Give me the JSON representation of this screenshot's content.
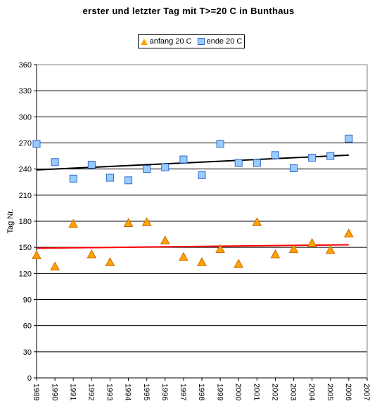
{
  "chart_data": {
    "type": "scatter",
    "title": "erster und letzter Tag mit T>=20 C in Bunthaus",
    "ylabel": "Tag Nr.",
    "xlabel": "",
    "ylim": [
      0,
      360
    ],
    "yticks": [
      0,
      30,
      60,
      90,
      120,
      150,
      180,
      210,
      240,
      270,
      300,
      330,
      360
    ],
    "xlim": [
      1989,
      2007
    ],
    "xticks": [
      1989,
      1990,
      1991,
      1992,
      1993,
      1994,
      1995,
      1996,
      1997,
      1998,
      1999,
      2000,
      2001,
      2002,
      2003,
      2004,
      2005,
      2006,
      2007
    ],
    "grid": "horizontal",
    "legend_position": "top",
    "series": [
      {
        "name": "anfang 20 C",
        "marker": "triangle",
        "color": "#FFA500",
        "edge_color": "#CC6600",
        "x": [
          1989,
          1990,
          1991,
          1992,
          1993,
          1994,
          1995,
          1996,
          1997,
          1998,
          1999,
          2000,
          2001,
          2002,
          2003,
          2004,
          2005,
          2006
        ],
        "values": [
          141,
          128,
          177,
          142,
          133,
          178,
          179,
          158,
          139,
          133,
          148,
          131,
          179,
          142,
          148,
          155,
          147,
          166
        ],
        "trend": {
          "color": "#FF0000",
          "start": [
            1989,
            149
          ],
          "end": [
            2006,
            153
          ]
        }
      },
      {
        "name": "ende 20 C",
        "marker": "square",
        "color": "#99CCFF",
        "edge_color": "#3366CC",
        "x": [
          1989,
          1990,
          1991,
          1992,
          1993,
          1994,
          1995,
          1996,
          1997,
          1998,
          1999,
          2000,
          2001,
          2002,
          2003,
          2004,
          2005,
          2006
        ],
        "values": [
          269,
          248,
          229,
          245,
          230,
          227,
          240,
          242,
          251,
          233,
          269,
          247,
          247,
          256,
          241,
          253,
          255,
          275
        ],
        "trend": {
          "color": "#000000",
          "start": [
            1989,
            239
          ],
          "end": [
            2006,
            256
          ]
        }
      }
    ]
  }
}
